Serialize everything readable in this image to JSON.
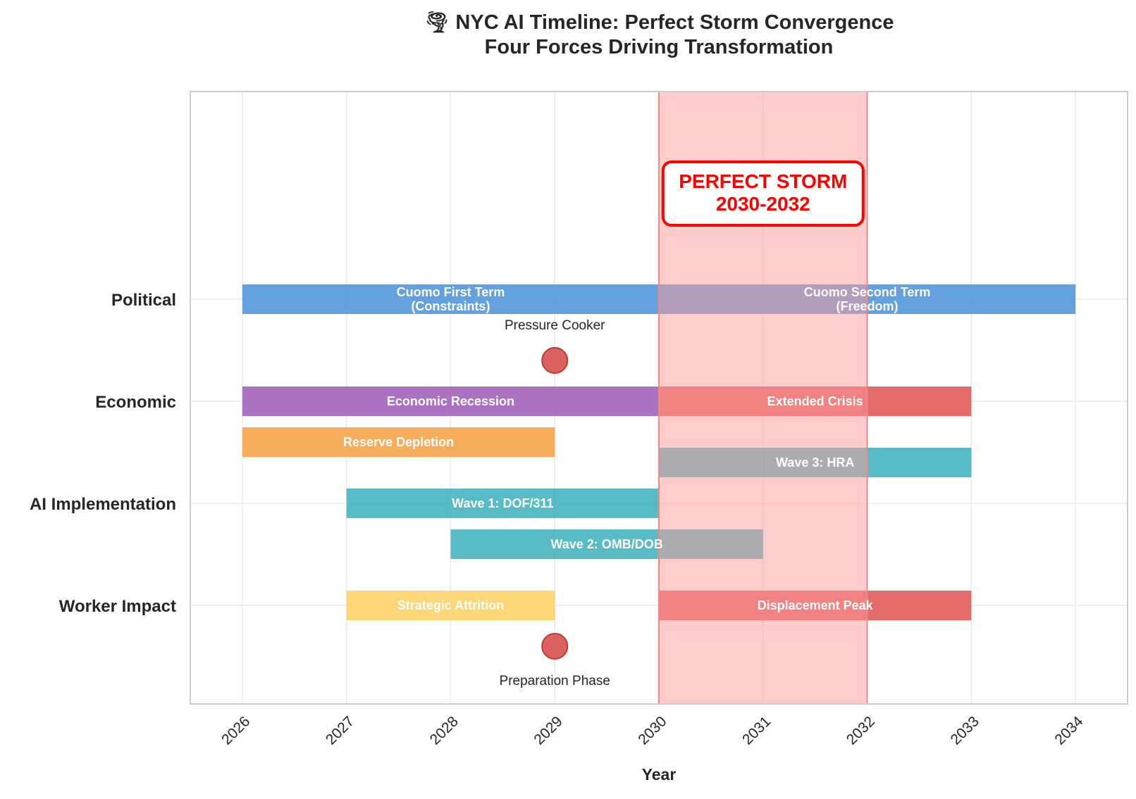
{
  "chart_data": {
    "type": "gantt",
    "title": "🌪 NYC AI Timeline: Perfect Storm Convergence",
    "subtitle": "Four Forces Driving Transformation",
    "xlabel": "Year",
    "xlim": [
      2025.5,
      2034.5
    ],
    "x_ticks": [
      2026,
      2027,
      2028,
      2029,
      2030,
      2031,
      2032,
      2033,
      2034
    ],
    "grid": true,
    "categories": [
      "Political",
      "Economic",
      "AI Implementation",
      "Worker Impact"
    ],
    "bars": [
      {
        "lane": "Political",
        "offset": 0,
        "start": 2026,
        "end": 2030,
        "label": [
          "Cuomo First Term",
          "(Constraints)"
        ],
        "color": "#4a90d9"
      },
      {
        "lane": "Political",
        "offset": 0,
        "start": 2030,
        "end": 2034,
        "label": [
          "Cuomo Second Term",
          "(Freedom)"
        ],
        "color": "#4a90d9"
      },
      {
        "lane": "Economic",
        "offset": 0,
        "start": 2026,
        "end": 2030,
        "label": [
          "Economic Recession"
        ],
        "color": "#9b59b6"
      },
      {
        "lane": "Economic",
        "offset": 0,
        "start": 2030,
        "end": 2033,
        "label": [
          "Extended Crisis"
        ],
        "color": "#e05050"
      },
      {
        "lane": "Economic",
        "offset": -0.4,
        "start": 2026,
        "end": 2029,
        "label": [
          "Reserve Depletion"
        ],
        "color": "#f5a040"
      },
      {
        "lane": "AI Implementation",
        "offset": 0.4,
        "start": 2030,
        "end": 2033,
        "label": [
          "Wave 3: HRA"
        ],
        "color": "#3ab0bc"
      },
      {
        "lane": "AI Implementation",
        "offset": 0,
        "start": 2027,
        "end": 2030,
        "label": [
          "Wave 1: DOF/311"
        ],
        "color": "#3ab0bc"
      },
      {
        "lane": "AI Implementation",
        "offset": -0.4,
        "start": 2028,
        "end": 2031,
        "label": [
          "Wave 2: OMB/DOB"
        ],
        "color": "#3ab0bc"
      },
      {
        "lane": "Worker Impact",
        "offset": 0,
        "start": 2027,
        "end": 2029,
        "label": [
          "Strategic Attrition"
        ],
        "color": "#fdd060"
      },
      {
        "lane": "Worker Impact",
        "offset": 0,
        "start": 2030,
        "end": 2033,
        "label": [
          "Displacement Peak"
        ],
        "color": "#e05050"
      }
    ],
    "milestones": [
      {
        "x": 2029,
        "lane": "Economic",
        "offset": 0.4,
        "label": "Pressure Cooker",
        "label_position": "above",
        "color": "#d64545"
      },
      {
        "x": 2029,
        "lane": "Worker Impact",
        "offset": -0.4,
        "label": "Preparation Phase",
        "label_position": "below",
        "color": "#d64545"
      }
    ],
    "highlight_region": {
      "start": 2030,
      "end": 2032,
      "color": "#ff9999",
      "label": [
        "PERFECT STORM",
        "2030-2032"
      ]
    }
  }
}
